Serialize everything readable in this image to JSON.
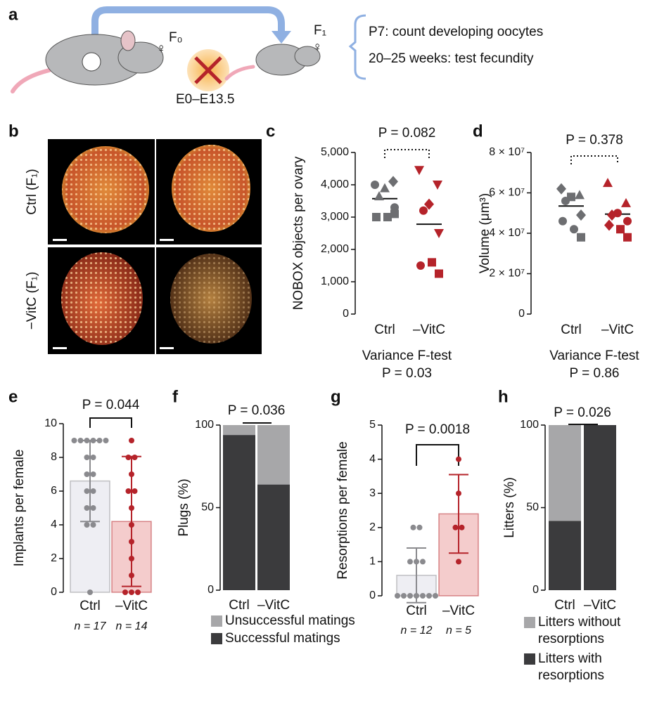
{
  "panel_a": {
    "letter": "a",
    "f0": "F₀",
    "f1": "F₁",
    "window": "E0–E13.5",
    "notes": [
      "P7: count developing oocytes",
      "20–25 weeks: test fecundity"
    ]
  },
  "panel_b": {
    "letter": "b",
    "rows": [
      "Ctrl (F₁)",
      "−VitC (F₁)"
    ]
  },
  "chart_data": [
    {
      "type": "strip",
      "panel": "c",
      "ylabel": "NOBOX objects per ovary",
      "categories": [
        "Ctrl",
        "–VitC"
      ],
      "p_label": "P = 0.082",
      "footer": [
        "Variance F-test",
        "P = 0.03"
      ],
      "ylim": [
        0,
        5000
      ],
      "yticks": [
        0,
        {
          "value": 1000,
          "label": "1,000"
        },
        {
          "value": 2000,
          "label": "2,000"
        },
        {
          "value": 3000,
          "label": "3,000"
        },
        {
          "value": 4000,
          "label": "4,000"
        },
        {
          "value": 5000,
          "label": "5,000"
        }
      ],
      "series": [
        {
          "name": "Ctrl",
          "color": "#6d6e71",
          "mean": 3570,
          "values": [
            4000,
            4100,
            3900,
            3650,
            3300,
            3000,
            3000,
            3100
          ],
          "markers": [
            "circle",
            "diamond",
            "triangle",
            "triangle",
            "circle",
            "square",
            "square",
            "square"
          ]
        },
        {
          "name": "–VitC",
          "color": "#b5232a",
          "mean": 2780,
          "values": [
            4450,
            4000,
            3400,
            3200,
            2500,
            1500,
            1600,
            1250
          ],
          "markers": [
            "triangle-down",
            "triangle-down",
            "diamond",
            "circle",
            "triangle-down",
            "circle",
            "square",
            "square"
          ]
        }
      ]
    },
    {
      "type": "strip",
      "panel": "d",
      "ylabel": "Volume (μm³)",
      "categories": [
        "Ctrl",
        "–VitC"
      ],
      "p_label": "P = 0.378",
      "footer": [
        "Variance F-test",
        "P = 0.86"
      ],
      "ylim": [
        0,
        80000000
      ],
      "yticks": [
        0,
        {
          "value": 20000000,
          "label": "2 × 10⁷"
        },
        {
          "value": 40000000,
          "label": "4 × 10⁷"
        },
        {
          "value": 60000000,
          "label": "6 × 10⁷"
        },
        {
          "value": 80000000,
          "label": "8 × 10⁷"
        }
      ],
      "series": [
        {
          "name": "Ctrl",
          "color": "#6d6e71",
          "mean": 53500000,
          "values": [
            62000000,
            59000000,
            58000000,
            56000000,
            49000000,
            46000000,
            42000000,
            38000000
          ],
          "markers": [
            "diamond",
            "triangle",
            "square",
            "circle",
            "diamond",
            "circle",
            "circle",
            "square"
          ]
        },
        {
          "name": "–VitC",
          "color": "#b5232a",
          "mean": 49500000,
          "values": [
            65000000,
            55000000,
            50000000,
            49000000,
            46000000,
            44000000,
            42000000,
            38000000
          ],
          "markers": [
            "triangle",
            "triangle",
            "circle",
            "diamond",
            "circle",
            "diamond",
            "square",
            "square"
          ]
        }
      ]
    },
    {
      "type": "bar",
      "panel": "e",
      "ylabel": "Implants per female",
      "categories": [
        "Ctrl",
        "–VitC"
      ],
      "p_label": "P = 0.044",
      "n_labels": [
        "n = 17",
        "n = 14"
      ],
      "ylim": [
        0,
        10
      ],
      "yticks": [
        0,
        2,
        4,
        6,
        8,
        10
      ],
      "values": [
        6.6,
        4.2
      ],
      "errors": [
        2.4,
        3.85
      ],
      "colors": [
        "#8a8a8e",
        "#b5232a"
      ],
      "fills": [
        "#eeeef3",
        "#f4cccc"
      ],
      "points": [
        [
          9,
          9,
          9,
          9,
          9,
          9,
          8,
          8,
          7,
          7,
          6,
          6,
          5,
          5,
          4,
          4,
          0
        ],
        [
          9,
          8,
          8,
          7,
          6,
          6,
          5,
          4,
          3,
          2,
          1,
          0,
          0,
          0
        ]
      ]
    },
    {
      "type": "stacked_bar",
      "panel": "f",
      "ylabel": "Plugs (%)",
      "categories": [
        "Ctrl",
        "–VitC"
      ],
      "p_label": "P = 0.036",
      "ylim": [
        0,
        100
      ],
      "yticks": [
        0,
        50,
        100
      ],
      "series": [
        {
          "name": "Unsuccessful matings",
          "color": "#a7a7a9",
          "values": [
            6,
            36
          ]
        },
        {
          "name": "Successful matings",
          "color": "#3b3b3d",
          "values": [
            94,
            64
          ]
        }
      ]
    },
    {
      "type": "bar",
      "panel": "g",
      "ylabel": "Resorptions per female",
      "categories": [
        "Ctrl",
        "–VitC"
      ],
      "p_label": "P = 0.0018",
      "n_labels": [
        "n = 12",
        "n = 5"
      ],
      "ylim": [
        0,
        5
      ],
      "yticks": [
        0,
        1,
        2,
        3,
        4,
        5
      ],
      "values": [
        0.6,
        2.4
      ],
      "errors": [
        0.8,
        1.15
      ],
      "colors": [
        "#8a8a8e",
        "#b5232a"
      ],
      "fills": [
        "#eeeef3",
        "#f4cccc"
      ],
      "points": [
        [
          2,
          2,
          1,
          1,
          1,
          0,
          0,
          0,
          0,
          0,
          0,
          0
        ],
        [
          4,
          3,
          2,
          2,
          1
        ]
      ]
    },
    {
      "type": "stacked_bar",
      "panel": "h",
      "ylabel": "Litters (%)",
      "categories": [
        "Ctrl",
        "–VitC"
      ],
      "p_label": "P = 0.026",
      "ylim": [
        0,
        100
      ],
      "yticks": [
        0,
        50,
        100
      ],
      "series": [
        {
          "name": "Litters without resorptions",
          "color": "#a7a7a9",
          "values": [
            58,
            0
          ]
        },
        {
          "name": "Litters with resorptions",
          "color": "#3b3b3d",
          "values": [
            42,
            100
          ]
        }
      ]
    }
  ]
}
